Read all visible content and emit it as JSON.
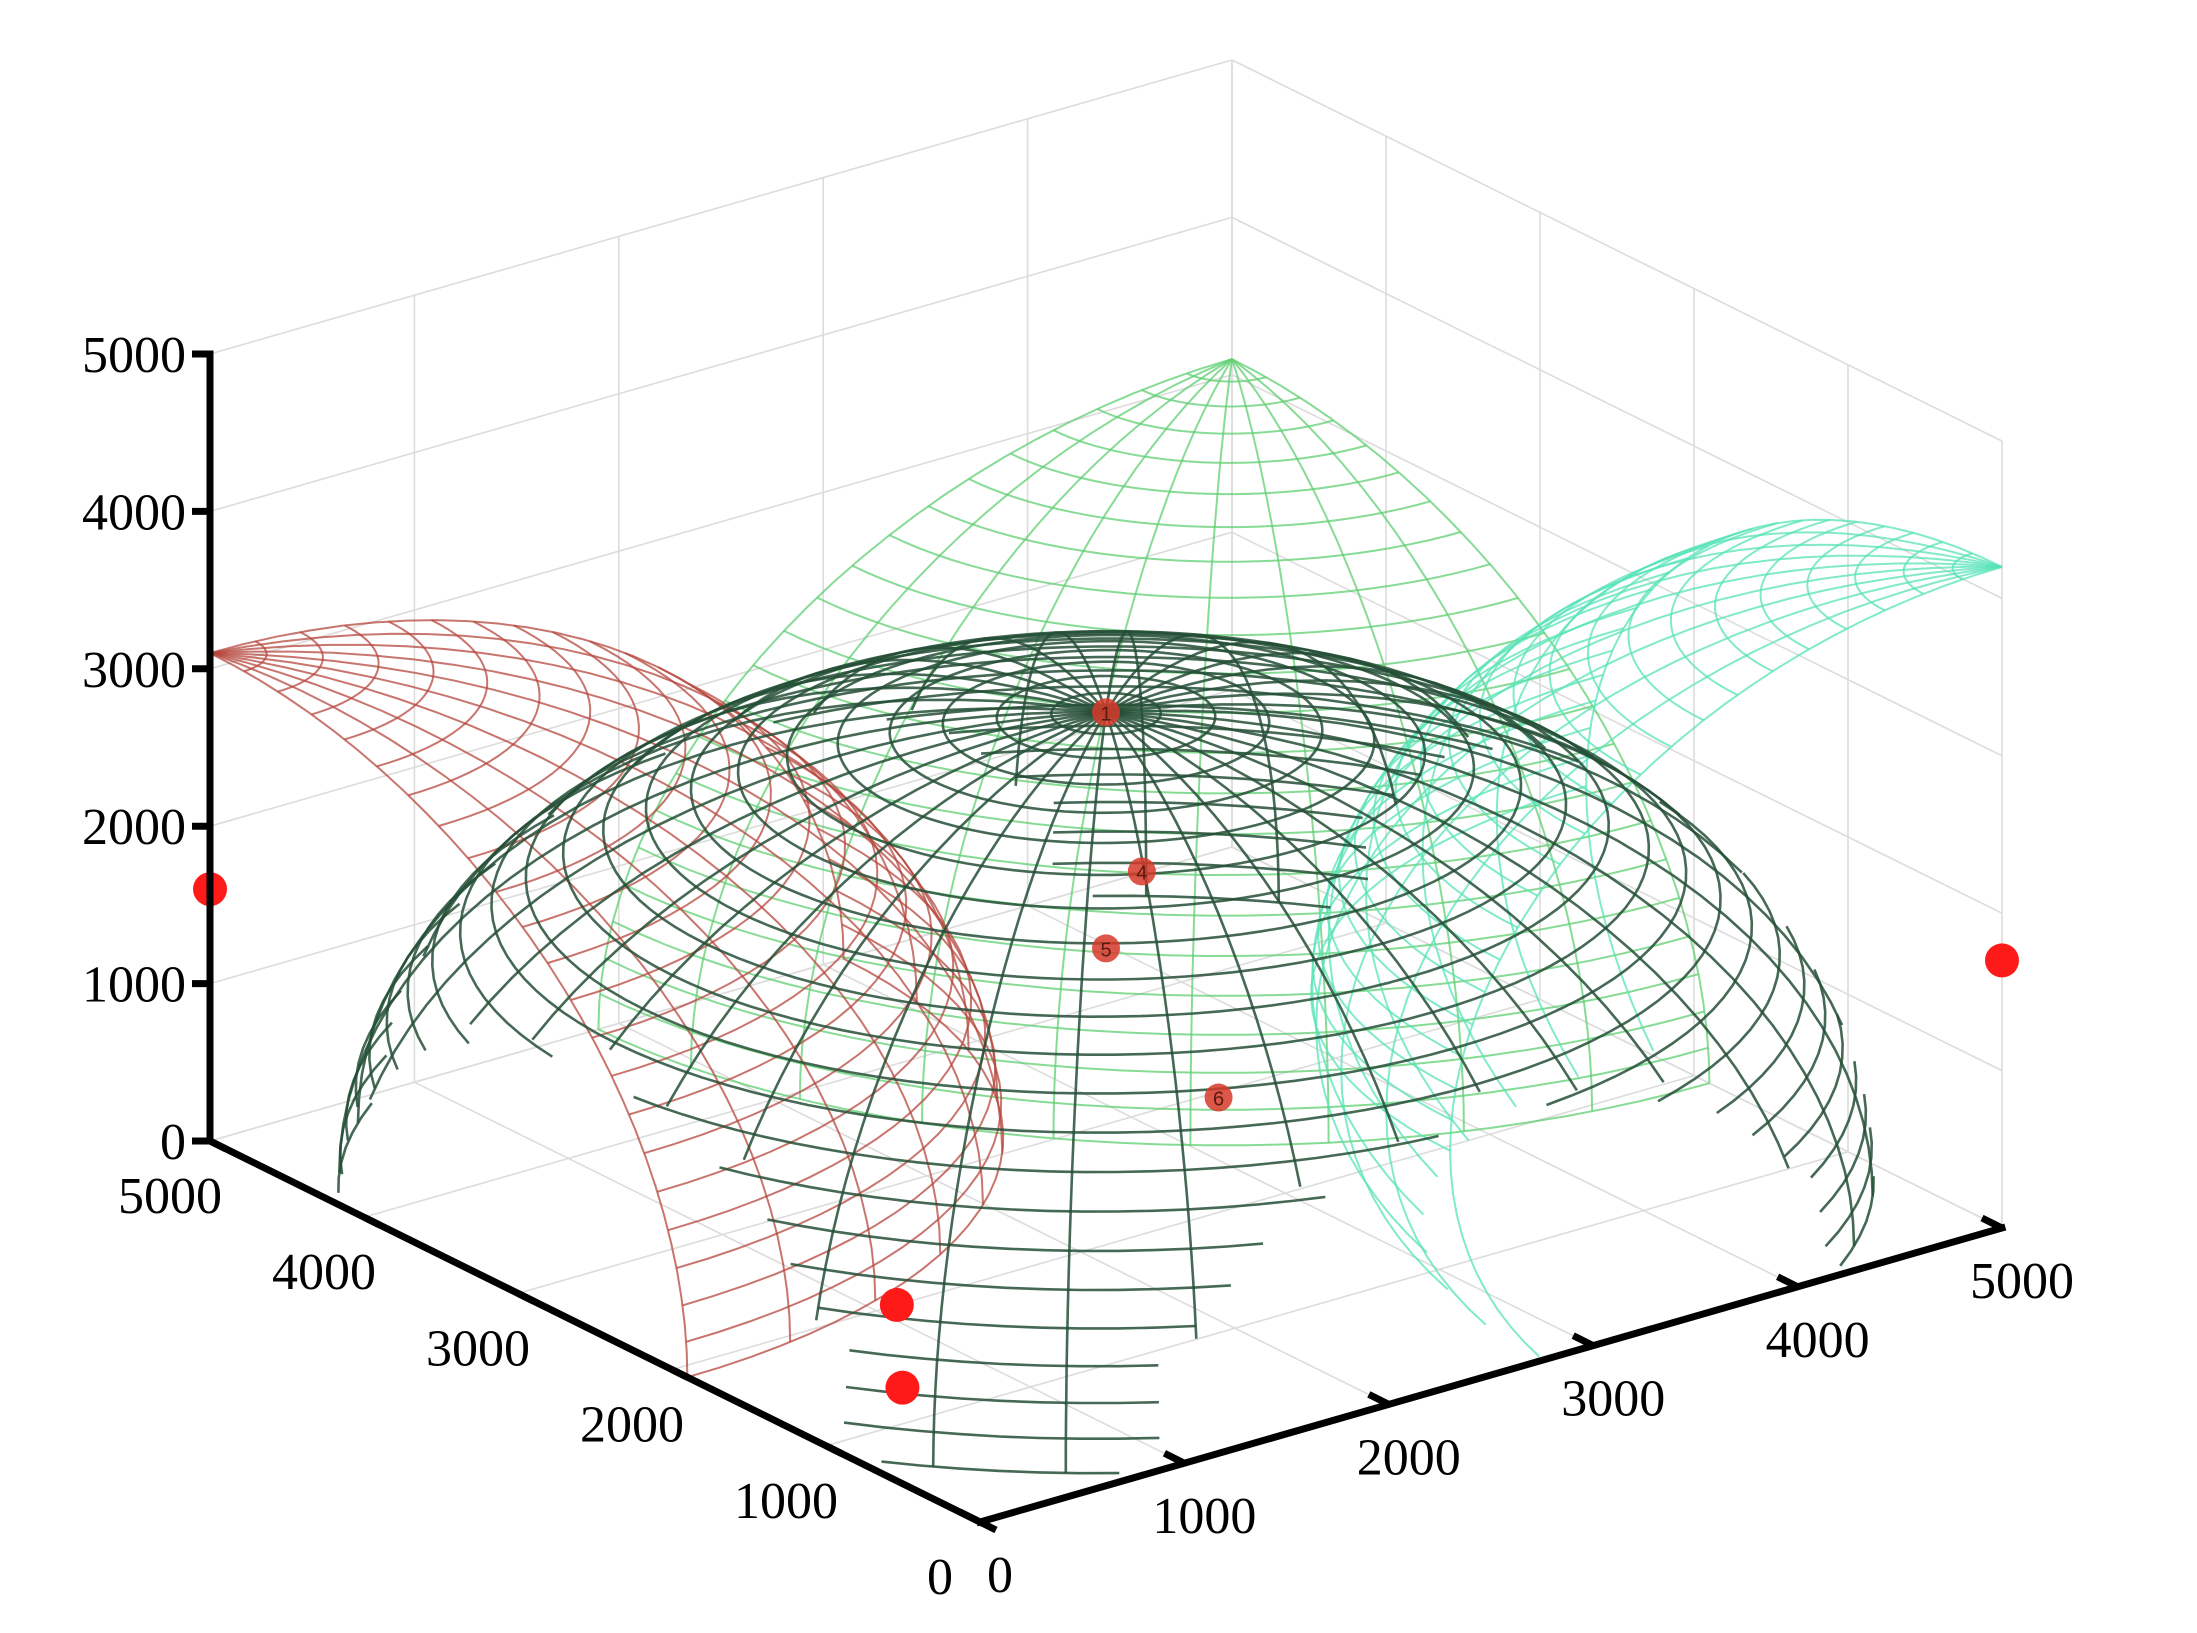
{
  "chart_data": {
    "type": "surface-3d",
    "title": "",
    "axes": {
      "x": {
        "range": [
          0,
          5000
        ],
        "ticks": [
          "0",
          "1000",
          "2000",
          "3000",
          "4000",
          "5000"
        ]
      },
      "y": {
        "range": [
          0,
          5000
        ],
        "ticks": [
          "0",
          "1000",
          "2000",
          "3000",
          "4000",
          "5000"
        ]
      },
      "z": {
        "range": [
          0,
          5000
        ],
        "ticks": [
          "0",
          "1000",
          "2000",
          "3000",
          "4000",
          "5000"
        ]
      }
    },
    "grid": true,
    "surfaces": [
      {
        "color": "#244f36",
        "shape": "hemisphere",
        "center": [
          2500,
          2500,
          0
        ],
        "radius": 3000
      },
      {
        "color": "#b5473e",
        "shape": "sphere-cap",
        "center": [
          0,
          5000,
          0
        ],
        "radius": 3100
      },
      {
        "color": "#5fcf72",
        "shape": "sphere-cap",
        "center": [
          5000,
          5000,
          0
        ],
        "radius": 3100
      },
      {
        "color": "#57e3b7",
        "shape": "sphere-cap",
        "center": [
          5000,
          0,
          1500
        ],
        "radius": 2700
      }
    ],
    "points": [
      {
        "label": "",
        "x": 0,
        "y": 5000,
        "z": 1600,
        "color": "#ff1a1a"
      },
      {
        "label": "",
        "x": 5000,
        "y": 0,
        "z": 1700,
        "color": "#ff1a1a"
      },
      {
        "label": "",
        "x": 1100,
        "y": 2000,
        "z": 0,
        "color": "#ff1a1a"
      },
      {
        "label": "",
        "x": 600,
        "y": 1300,
        "z": 0,
        "color": "#ff1a1a"
      },
      {
        "label": "1",
        "x": 2500,
        "y": 2500,
        "z": 3000,
        "color": "#d63a2a"
      },
      {
        "label": "4",
        "x": 2600,
        "y": 2400,
        "z": 2000,
        "color": "#d63a2a"
      },
      {
        "label": "5",
        "x": 2500,
        "y": 2500,
        "z": 1500,
        "color": "#d63a2a"
      },
      {
        "label": "6",
        "x": 2900,
        "y": 2300,
        "z": 500,
        "color": "#d63a2a"
      }
    ]
  }
}
